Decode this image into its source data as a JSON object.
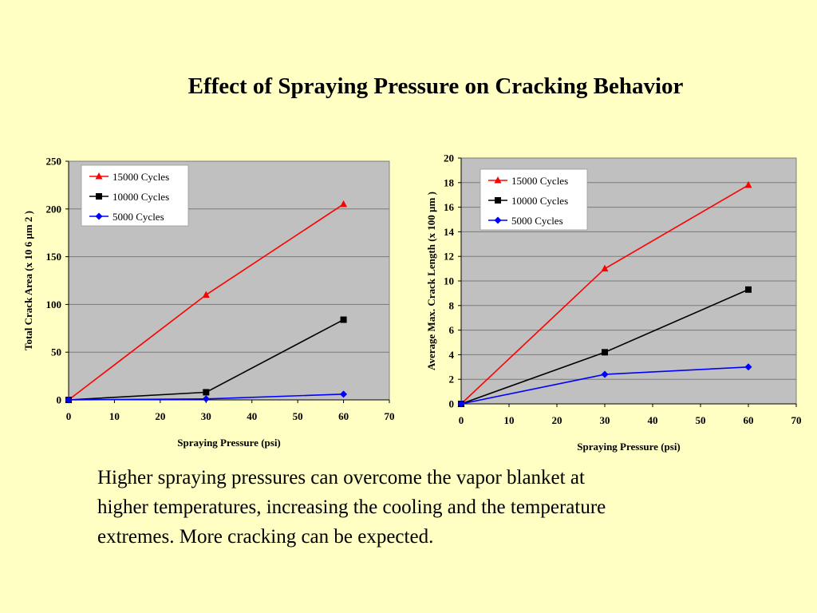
{
  "slide": {
    "title": "Effect of Spraying Pressure on Cracking Behavior",
    "body_lines": [
      "Higher spraying pressures can overcome the vapor blanket at",
      "higher temperatures, increasing the cooling and the temperature",
      "extremes.  More cracking can be expected."
    ]
  },
  "colors": {
    "background": "#ffffc4",
    "plot_area": "#c0c0c0",
    "series_15000": "#ff0000",
    "series_10000": "#000000",
    "series_5000": "#0000ff"
  },
  "chart_data": [
    {
      "type": "line",
      "title": "",
      "xlabel": "Spraying Pressure (psi)",
      "ylabel": "Total Crack Area (x 10 6 µm 2 )",
      "xlim": [
        0,
        70
      ],
      "ylim": [
        0,
        250
      ],
      "xticks": [
        0,
        10,
        20,
        30,
        40,
        50,
        60,
        70
      ],
      "yticks": [
        0,
        50,
        100,
        150,
        200,
        250
      ],
      "grid": true,
      "legend": "top-left",
      "series": [
        {
          "name": "15000 Cycles",
          "marker": "triangle",
          "color": "#ff0000",
          "x": [
            0,
            30,
            60
          ],
          "y": [
            0,
            110,
            205
          ]
        },
        {
          "name": "10000 Cycles",
          "marker": "square",
          "color": "#000000",
          "x": [
            0,
            30,
            60
          ],
          "y": [
            0,
            8,
            84
          ]
        },
        {
          "name": "5000 Cycles",
          "marker": "diamond",
          "color": "#0000ff",
          "x": [
            0,
            30,
            60
          ],
          "y": [
            0,
            1,
            6
          ]
        }
      ]
    },
    {
      "type": "line",
      "title": "",
      "xlabel": "Spraying Pressure (psi)",
      "ylabel": "Average Max. Crack Length (x 100 µm )",
      "xlim": [
        0,
        70
      ],
      "ylim": [
        0,
        20
      ],
      "xticks": [
        0,
        10,
        20,
        30,
        40,
        50,
        60,
        70
      ],
      "yticks": [
        0,
        2,
        4,
        6,
        8,
        10,
        12,
        14,
        16,
        18,
        20
      ],
      "grid": true,
      "legend": "top-left",
      "series": [
        {
          "name": "15000 Cycles",
          "marker": "triangle",
          "color": "#ff0000",
          "x": [
            0,
            30,
            60
          ],
          "y": [
            0,
            11,
            17.8
          ]
        },
        {
          "name": "10000 Cycles",
          "marker": "square",
          "color": "#000000",
          "x": [
            0,
            30,
            60
          ],
          "y": [
            0,
            4.2,
            9.3
          ]
        },
        {
          "name": "5000 Cycles",
          "marker": "diamond",
          "color": "#0000ff",
          "x": [
            0,
            30,
            60
          ],
          "y": [
            0,
            2.4,
            3
          ]
        }
      ]
    }
  ]
}
